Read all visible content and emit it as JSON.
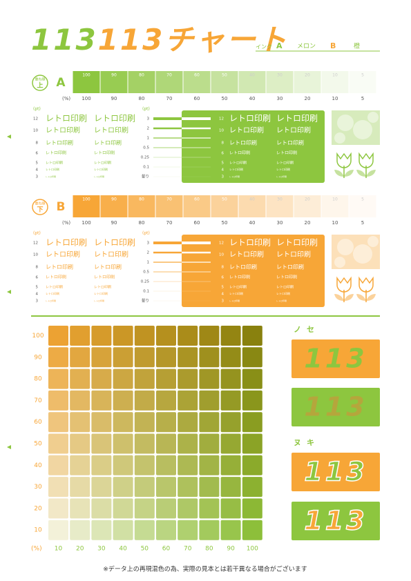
{
  "title": {
    "parts": [
      {
        "text": "113",
        "color": "#8dc63f"
      },
      {
        "text": "113",
        "color": "#f7a637"
      },
      {
        "text": "チャート",
        "color": "#f7a637"
      }
    ]
  },
  "ink": {
    "label": "インク",
    "a_label": "A",
    "a_name": "メロン",
    "b_label": "B",
    "b_name": "橙"
  },
  "percent_unit": "(%)",
  "pt_unit": "(pt)",
  "sample_text": "レトロ印刷",
  "pt_sizes": [
    12,
    10,
    8,
    6,
    5,
    4,
    3
  ],
  "line_weights": [
    "3",
    "2",
    "1",
    "0.5",
    "0.25",
    "0.1",
    "髪り"
  ],
  "sections": [
    {
      "order_label": "重ね順",
      "order": "上",
      "name": "A",
      "color": "#8dc63f",
      "tints": [
        100,
        90,
        80,
        70,
        60,
        50,
        40,
        30,
        20,
        10,
        5
      ]
    },
    {
      "order_label": "重ね順",
      "order": "下",
      "name": "B",
      "color": "#f7a637",
      "tints": [
        100,
        90,
        80,
        70,
        60,
        50,
        40,
        30,
        20,
        10,
        5
      ]
    }
  ],
  "mix_grid": {
    "xticks": [
      10,
      20,
      30,
      40,
      50,
      60,
      70,
      80,
      90,
      100
    ],
    "yticks": [
      100,
      90,
      80,
      70,
      60,
      50,
      40,
      30,
      20,
      10
    ]
  },
  "nose": {
    "label": "ノセ",
    "text": "113"
  },
  "nuki": {
    "label": "ヌキ",
    "text": "113"
  },
  "note": "※データ上の再現混色の為、実際の見本とは若干異なる場合がございます"
}
